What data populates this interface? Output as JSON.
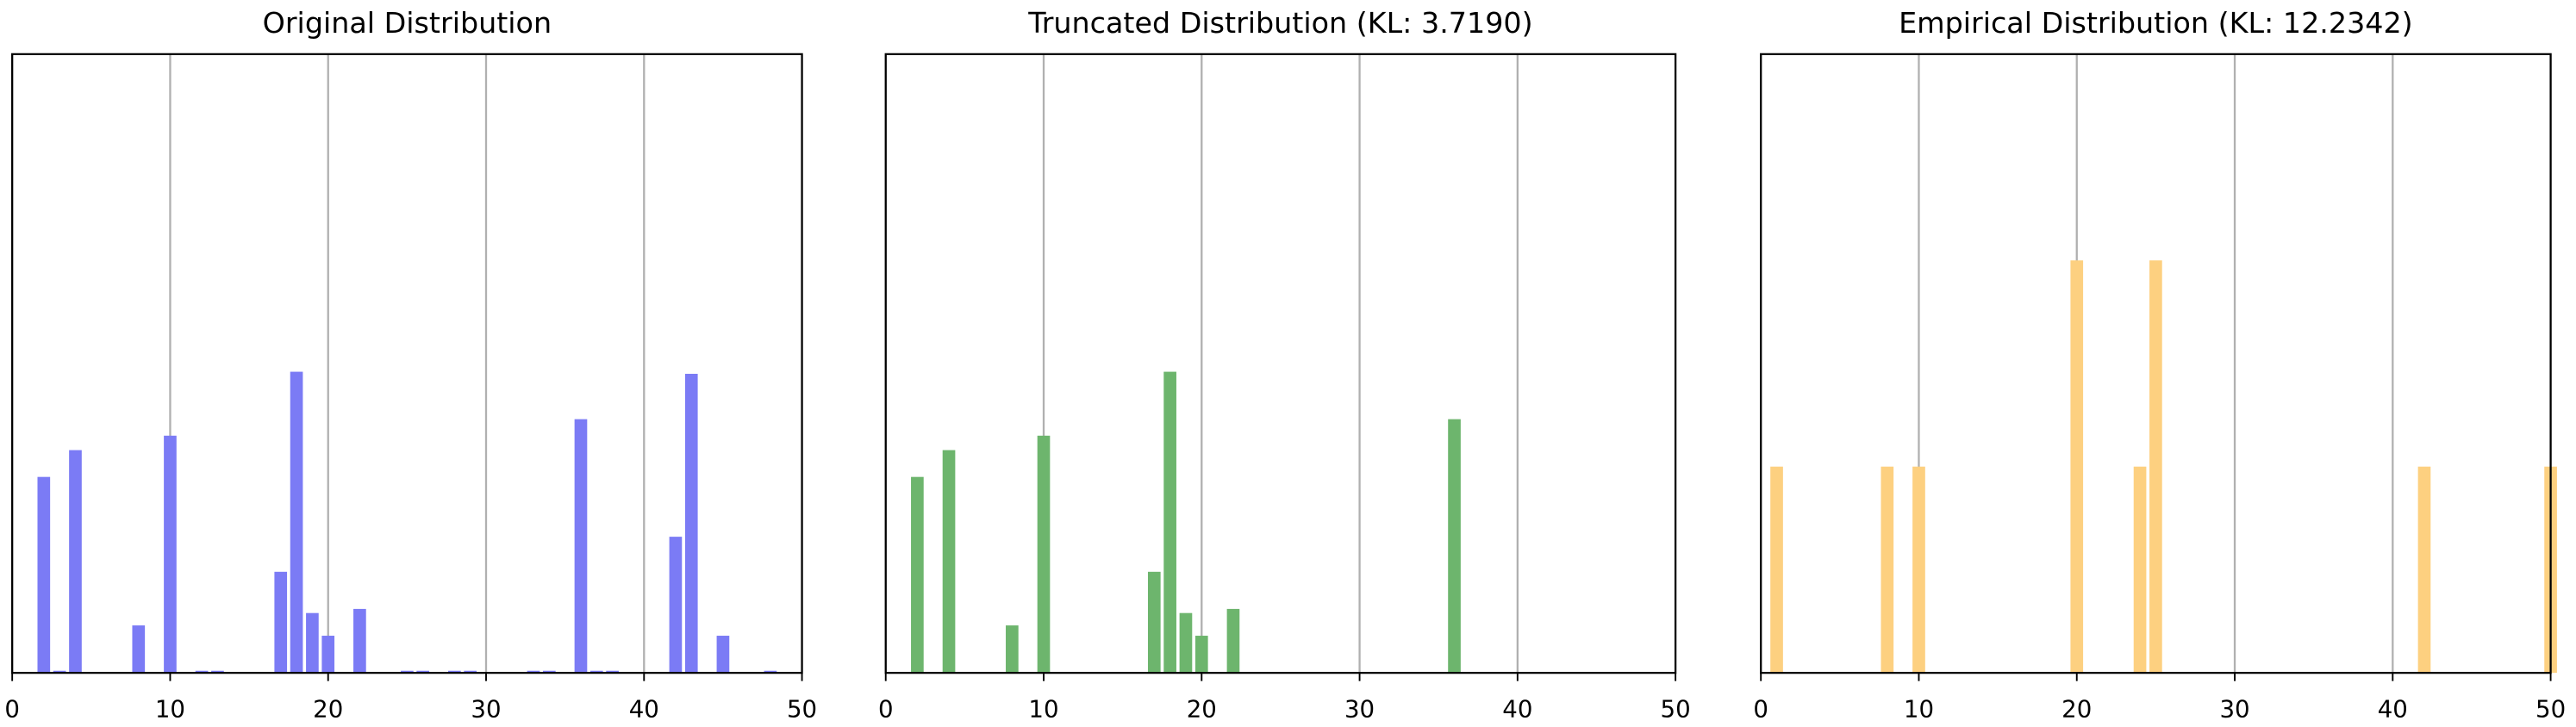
{
  "chart_data": [
    {
      "type": "bar",
      "title": "Original Distribution",
      "color": "#7b7bf5",
      "x": [
        2,
        3,
        4,
        8,
        10,
        12,
        13,
        17,
        18,
        19,
        20,
        22,
        25,
        26,
        28,
        29,
        33,
        34,
        36,
        37,
        38,
        42,
        43,
        45,
        48
      ],
      "values": [
        0.095,
        0.001,
        0.108,
        0.023,
        0.115,
        0.001,
        0.001,
        0.049,
        0.146,
        0.029,
        0.018,
        0.031,
        0.001,
        0.001,
        0.001,
        0.001,
        0.001,
        0.001,
        0.123,
        0.001,
        0.001,
        0.066,
        0.145,
        0.018,
        0.001
      ],
      "xlim": [
        0,
        50
      ],
      "xticks": [
        0,
        10,
        20,
        30,
        40,
        50
      ],
      "ylim": [
        0,
        0.3
      ],
      "grid": true
    },
    {
      "type": "bar",
      "title": "Truncated Distribution (KL: 3.7190)",
      "color": "#6db56d",
      "x": [
        2,
        4,
        8,
        10,
        17,
        18,
        19,
        20,
        22,
        36
      ],
      "values": [
        0.095,
        0.108,
        0.023,
        0.115,
        0.049,
        0.146,
        0.029,
        0.018,
        0.031,
        0.123
      ],
      "xlim": [
        0,
        50
      ],
      "xticks": [
        0,
        10,
        20,
        30,
        40,
        50
      ],
      "ylim": [
        0,
        0.3
      ],
      "grid": true
    },
    {
      "type": "bar",
      "title": "Empirical Distribution (KL: 12.2342)",
      "color": "#fdd080",
      "x": [
        1,
        8,
        10,
        20,
        24,
        25,
        42,
        50
      ],
      "values": [
        0.1,
        0.1,
        0.1,
        0.2,
        0.1,
        0.2,
        0.1,
        0.1
      ],
      "xlim": [
        0,
        50
      ],
      "xticks": [
        0,
        10,
        20,
        30,
        40,
        50
      ],
      "ylim": [
        0,
        0.3
      ],
      "grid": true
    }
  ]
}
